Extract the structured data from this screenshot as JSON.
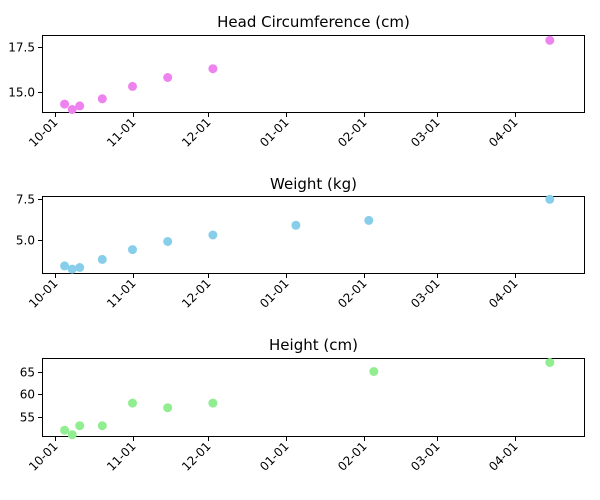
{
  "chart_data": [
    {
      "type": "scatter",
      "title": "Head Circumference (cm)",
      "color": "#ee82ee",
      "x": [
        "2023-10-05",
        "2023-10-08",
        "2023-10-11",
        "2023-10-20",
        "2023-11-01",
        "2023-11-15",
        "2023-12-03",
        "2024-04-15"
      ],
      "y": [
        14.3,
        14.0,
        14.2,
        14.6,
        15.3,
        15.8,
        16.3,
        17.9
      ],
      "ylim": [
        13.8,
        18.2
      ],
      "yticks": [
        15.0,
        17.5
      ],
      "ytick_labels": [
        "15.0",
        "17.5"
      ],
      "xlim": [
        "2023-09-26",
        "2024-04-29"
      ],
      "xticks": [
        "2023-10-01",
        "2023-11-01",
        "2023-12-01",
        "2024-01-01",
        "2024-02-01",
        "2024-03-01",
        "2024-04-01"
      ],
      "xtick_labels": [
        "10-01",
        "11-01",
        "12-01",
        "01-01",
        "02-01",
        "03-01",
        "04-01"
      ],
      "grid": false
    },
    {
      "type": "scatter",
      "title": "Weight (kg)",
      "color": "#87ceeb",
      "x": [
        "2023-10-05",
        "2023-10-08",
        "2023-10-11",
        "2023-10-20",
        "2023-11-01",
        "2023-11-15",
        "2023-12-03",
        "2024-01-05",
        "2024-02-03",
        "2024-04-15"
      ],
      "y": [
        3.4,
        3.2,
        3.3,
        3.8,
        4.4,
        4.9,
        5.3,
        5.9,
        6.2,
        7.5
      ],
      "ylim": [
        2.9,
        7.7
      ],
      "yticks": [
        5.0,
        7.5
      ],
      "ytick_labels": [
        "5.0",
        "7.5"
      ],
      "xlim": [
        "2023-09-26",
        "2024-04-29"
      ],
      "xticks": [
        "2023-10-01",
        "2023-11-01",
        "2023-12-01",
        "2024-01-01",
        "2024-02-01",
        "2024-03-01",
        "2024-04-01"
      ],
      "xtick_labels": [
        "10-01",
        "11-01",
        "12-01",
        "01-01",
        "02-01",
        "03-01",
        "04-01"
      ],
      "grid": false
    },
    {
      "type": "scatter",
      "title": "Height (cm)",
      "color": "#90ee90",
      "x": [
        "2023-10-05",
        "2023-10-08",
        "2023-10-11",
        "2023-10-20",
        "2023-11-01",
        "2023-11-15",
        "2023-12-03",
        "2024-02-05",
        "2024-04-15"
      ],
      "y": [
        52.0,
        51.0,
        53.0,
        53.0,
        58.0,
        57.0,
        58.0,
        65.0,
        67.0
      ],
      "ylim": [
        50.5,
        68.0
      ],
      "yticks": [
        55,
        60,
        65
      ],
      "ytick_labels": [
        "55",
        "60",
        "65"
      ],
      "xlim": [
        "2023-09-26",
        "2024-04-29"
      ],
      "xticks": [
        "2023-10-01",
        "2023-11-01",
        "2023-12-01",
        "2024-01-01",
        "2024-02-01",
        "2024-03-01",
        "2024-04-01"
      ],
      "xtick_labels": [
        "10-01",
        "11-01",
        "12-01",
        "01-01",
        "02-01",
        "03-01",
        "04-01"
      ],
      "grid": false
    }
  ]
}
